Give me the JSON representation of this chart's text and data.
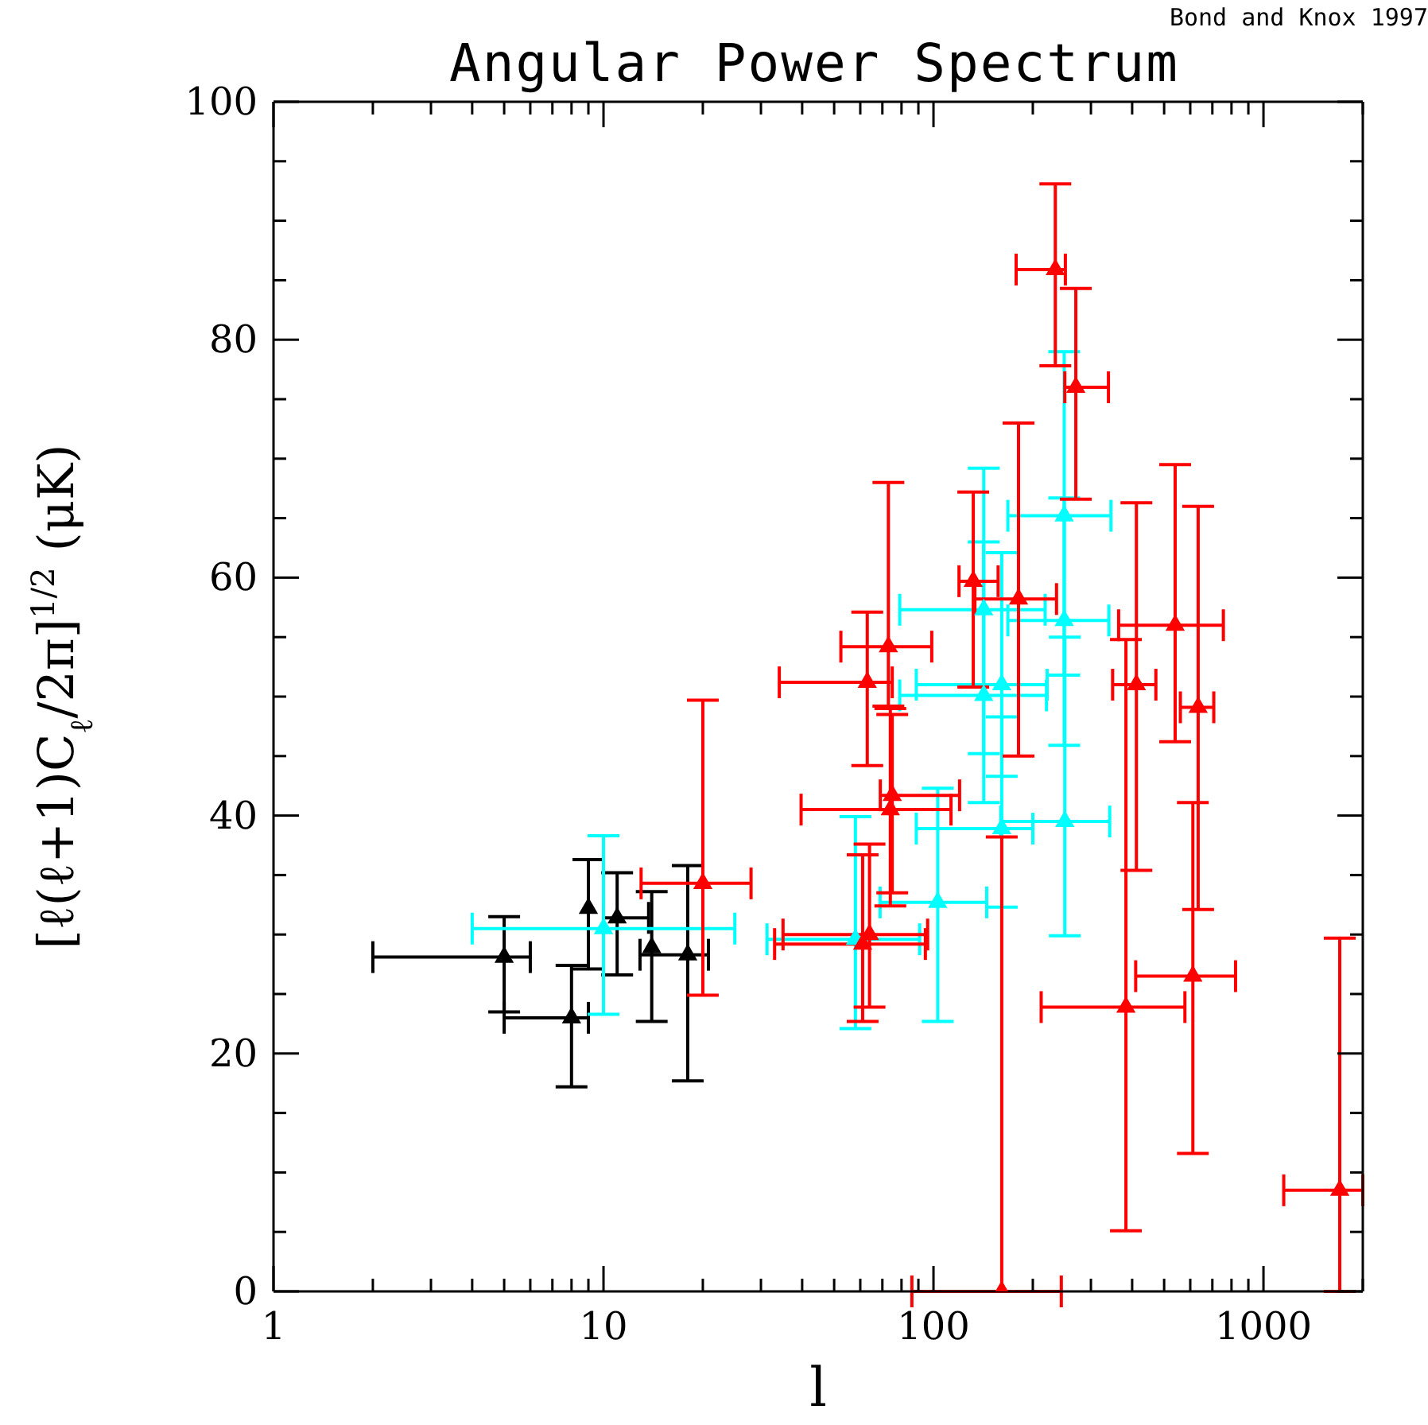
{
  "chart_data": {
    "type": "scatter",
    "title": "Angular Power Spectrum",
    "xlabel": "l",
    "ylabel": "[ℓ(ℓ+1)C$_{ℓ}$/2π]$^{1/2}$   (μK)",
    "annotations": [
      "Bond and Knox 1997"
    ],
    "log": "x",
    "marker": "triangle",
    "xlim": [
      1,
      2000
    ],
    "xticks": [
      1,
      {
        "value": 2,
        "label": null
      },
      {
        "value": 3,
        "label": null
      },
      {
        "value": 4,
        "label": null
      },
      {
        "value": 5,
        "label": null
      },
      {
        "value": 6,
        "label": null
      },
      {
        "value": 7,
        "label": null
      },
      {
        "value": 8,
        "label": null
      },
      {
        "value": 9,
        "label": null
      },
      10,
      {
        "value": 20,
        "label": null
      },
      {
        "value": 30,
        "label": null
      },
      {
        "value": 40,
        "label": null
      },
      {
        "value": 50,
        "label": null
      },
      {
        "value": 60,
        "label": null
      },
      {
        "value": 70,
        "label": null
      },
      {
        "value": 80,
        "label": null
      },
      {
        "value": 90,
        "label": null
      },
      100,
      {
        "value": 200,
        "label": null
      },
      {
        "value": 300,
        "label": null
      },
      {
        "value": 400,
        "label": null
      },
      {
        "value": 500,
        "label": null
      },
      {
        "value": 600,
        "label": null
      },
      {
        "value": 700,
        "label": null
      },
      {
        "value": 800,
        "label": null
      },
      {
        "value": 900,
        "label": null
      },
      1000,
      {
        "value": 2000,
        "label": null
      }
    ],
    "ylim": [
      0,
      100
    ],
    "yticks": [
      0,
      {
        "value": 5,
        "label": null
      },
      {
        "value": 10,
        "label": null
      },
      {
        "value": 15,
        "label": null
      },
      20,
      {
        "value": 25,
        "label": null
      },
      {
        "value": 30,
        "label": null
      },
      {
        "value": 35,
        "label": null
      },
      40,
      {
        "value": 45,
        "label": null
      },
      {
        "value": 50,
        "label": null
      },
      {
        "value": 55,
        "label": null
      },
      60,
      {
        "value": 65,
        "label": null
      },
      {
        "value": 70,
        "label": null
      },
      {
        "value": 75,
        "label": null
      },
      80,
      {
        "value": 85,
        "label": null
      },
      {
        "value": 90,
        "label": null
      },
      {
        "value": 95,
        "label": null
      },
      100
    ],
    "series": [
      {
        "color": "#000000",
        "x": [
          5,
          8,
          9,
          11,
          14,
          18
        ],
        "values": [
          28.1,
          23.0,
          32.2,
          31.4,
          28.9,
          28.3
        ],
        "errors": [
          [
            23.5,
            31.5
          ],
          [
            17.2,
            27.4
          ],
          [
            27.1,
            36.3
          ],
          [
            26.6,
            35.2
          ],
          [
            22.7,
            33.6
          ],
          [
            17.7,
            35.8
          ]
        ],
        "xerrors": [
          [
            2,
            6
          ],
          [
            5,
            9
          ],
          null,
          [
            10,
            13.7
          ],
          null,
          [
            12.9,
            20.8
          ]
        ]
      },
      {
        "color": "#00ffff",
        "x": [
          10,
          58,
          103,
          161,
          161,
          142,
          142,
          250,
          249,
          249
        ],
        "values": [
          30.5,
          29.6,
          32.7,
          38.9,
          51.0,
          50.1,
          57.3,
          39.5,
          56.4,
          65.2
        ],
        "errors": [
          [
            23.3,
            38.3
          ],
          [
            22.1,
            39.9
          ],
          [
            22.7,
            42.3
          ],
          [
            32.3,
            48.3
          ],
          [
            43.3,
            62.1
          ],
          [
            41.1,
            63.0
          ],
          [
            45.2,
            69.2
          ],
          [
            29.9,
            55.0
          ],
          [
            45.9,
            66.7
          ],
          [
            51.8,
            79.0
          ]
        ],
        "xerrors": [
          [
            4,
            25
          ],
          [
            31.3,
            90.8
          ],
          [
            68.9,
            145
          ],
          [
            88.7,
            200
          ],
          [
            88.7,
            221
          ],
          [
            79,
            220
          ],
          [
            79,
            218
          ],
          [
            160,
            342
          ],
          [
            168,
            340
          ],
          [
            168,
            345
          ]
        ]
      },
      {
        "color": "#ff0000",
        "x": [
          20,
          63,
          73,
          75,
          74,
          61,
          64,
          132,
          161,
          181,
          234,
          270,
          383,
          412,
          540,
          611,
          634,
          1703
        ],
        "values": [
          34.3,
          51.2,
          54.2,
          41.7,
          40.5,
          29.2,
          30.0,
          59.7,
          0,
          58.2,
          85.9,
          76.0,
          23.9,
          51.0,
          56.0,
          26.5,
          49.1,
          8.5
        ],
        "errors": [
          [
            24.9,
            49.7
          ],
          [
            44.2,
            57.1
          ],
          [
            49.2,
            68
          ],
          [
            33.5,
            48.5
          ],
          [
            32.4,
            49
          ],
          [
            22.7,
            36.7
          ],
          [
            23.9,
            37.6
          ],
          [
            50.8,
            67.2
          ],
          [
            0,
            38.2
          ],
          [
            45,
            73
          ],
          [
            77.8,
            93.1
          ],
          [
            66.6,
            84.3
          ],
          [
            5.1,
            54.8
          ],
          [
            35.4,
            66.3
          ],
          [
            46.2,
            69.5
          ],
          [
            11.6,
            41.1
          ],
          [
            32.1,
            66
          ],
          [
            0,
            29.7
          ]
        ],
        "xerrors": [
          [
            13,
            28
          ],
          [
            34.1,
            75
          ],
          [
            52.4,
            98.8
          ],
          [
            69,
            120
          ],
          [
            39.7,
            113
          ],
          [
            33,
            94.5
          ],
          [
            35,
            96
          ],
          [
            119.5,
            157
          ],
          [
            86,
            244
          ],
          [
            133.5,
            236
          ],
          [
            178,
            251
          ],
          [
            250,
            339
          ],
          [
            212,
            578
          ],
          [
            349,
            472
          ],
          [
            364,
            756
          ],
          [
            410,
            823
          ],
          [
            560,
            707
          ],
          [
            1152,
            2000
          ]
        ]
      }
    ]
  }
}
